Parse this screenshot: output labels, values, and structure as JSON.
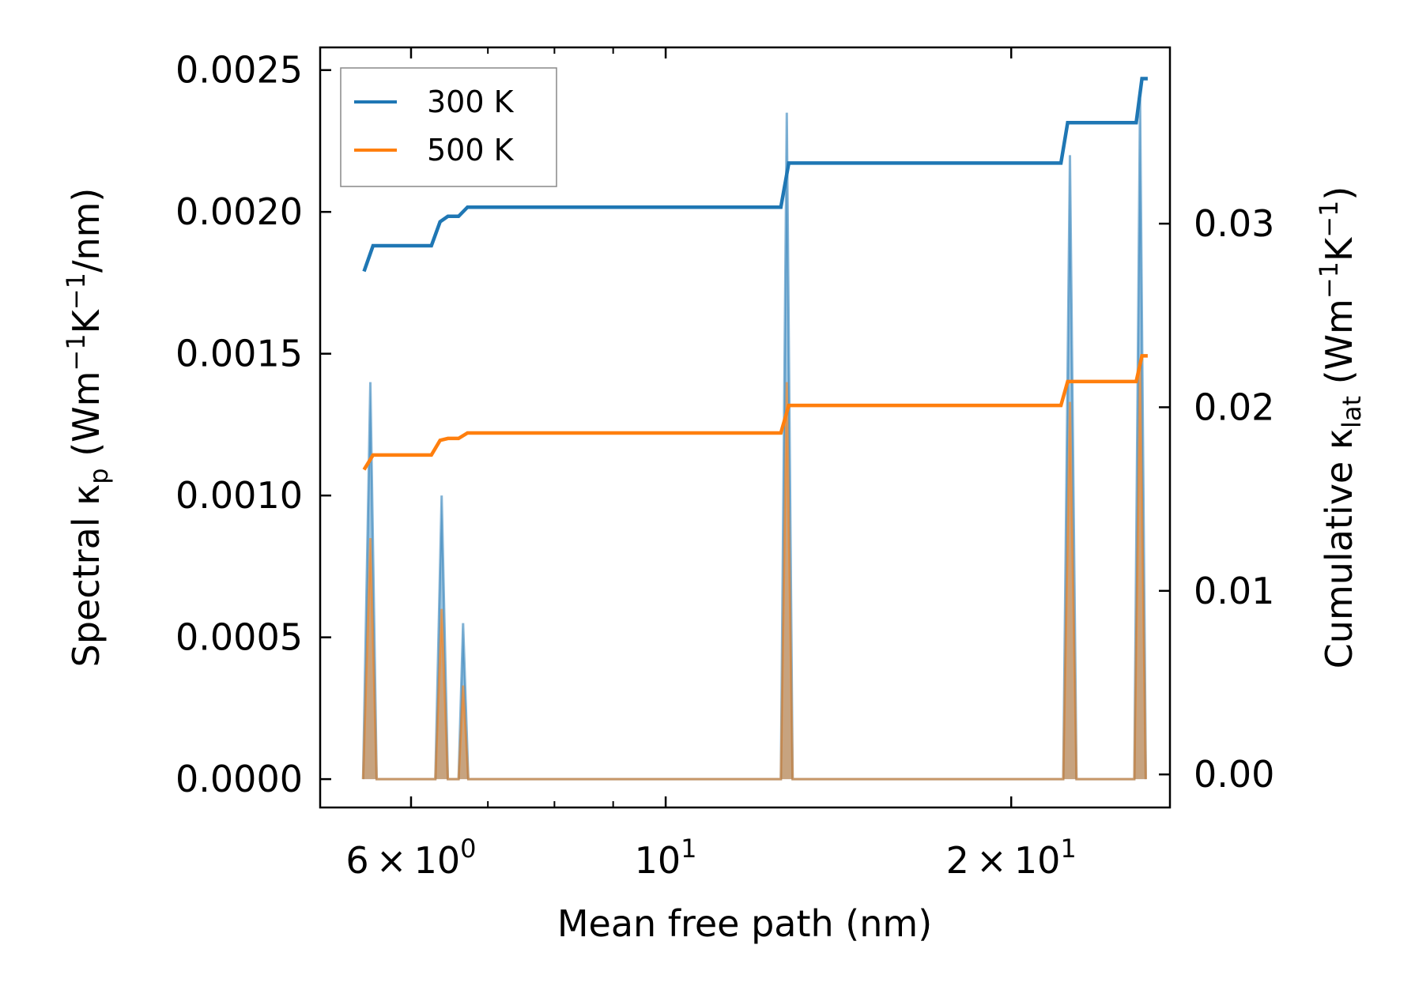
{
  "chart_data": {
    "type": "line",
    "title": "",
    "xlabel": "Mean free path (nm)",
    "ylabel_left": {
      "main": "Spectral κ",
      "sub": "p",
      "unit_prefix": " (Wm",
      "unit_exp1": "−1",
      "unit_mid": "K",
      "unit_exp2": "−1",
      "unit_suffix": "/nm)"
    },
    "ylabel_right": {
      "main": "Cumulative κ",
      "sub": "lat",
      "unit_prefix": " (Wm",
      "unit_exp1": "−1",
      "unit_mid": "K",
      "unit_exp2": "−1",
      "unit_suffix": ")"
    },
    "xscale": "log",
    "xlim": [
      5.0,
      27.5
    ],
    "ylim_left": [
      -0.0001,
      0.00258
    ],
    "ylim_right": [
      -0.0018,
      0.0396
    ],
    "x_ticks": [
      {
        "value": 6,
        "mantissa": "6",
        "times": "×",
        "base": "10",
        "exp": "0"
      },
      {
        "value": 10,
        "mantissa": "",
        "times": "",
        "base": "10",
        "exp": "1"
      },
      {
        "value": 20,
        "mantissa": "2",
        "times": "×",
        "base": "10",
        "exp": "1"
      }
    ],
    "x_minor_ticks": [
      7,
      8,
      9,
      30
    ],
    "y_ticks_left": [
      {
        "value": 0.0,
        "label": "0.0000"
      },
      {
        "value": 0.0005,
        "label": "0.0005"
      },
      {
        "value": 0.001,
        "label": "0.0010"
      },
      {
        "value": 0.0015,
        "label": "0.0015"
      },
      {
        "value": 0.002,
        "label": "0.0020"
      },
      {
        "value": 0.0025,
        "label": "0.0025"
      }
    ],
    "y_ticks_right": [
      {
        "value": 0.0,
        "label": "0.00"
      },
      {
        "value": 0.01,
        "label": "0.01"
      },
      {
        "value": 0.02,
        "label": "0.02"
      },
      {
        "value": 0.03,
        "label": "0.03"
      }
    ],
    "legend": {
      "position": "top-left",
      "entries": [
        {
          "label": "300 K",
          "color": "#1f77b4"
        },
        {
          "label": "500 K",
          "color": "#ff7f0e"
        }
      ]
    },
    "series": [
      {
        "name": "300 K",
        "color": "#1f77b4",
        "spectral": [
          {
            "x": 5.45,
            "y": 0.0
          },
          {
            "x": 5.53,
            "y": 0.0014
          },
          {
            "x": 5.6,
            "y": 0.0
          },
          {
            "x": 6.3,
            "y": 0.0
          },
          {
            "x": 6.38,
            "y": 0.001
          },
          {
            "x": 6.46,
            "y": 0.0
          },
          {
            "x": 6.6,
            "y": 0.0
          },
          {
            "x": 6.66,
            "y": 0.00055
          },
          {
            "x": 6.73,
            "y": 0.0
          },
          {
            "x": 12.6,
            "y": 0.0
          },
          {
            "x": 12.75,
            "y": 0.00235
          },
          {
            "x": 12.9,
            "y": 0.0
          },
          {
            "x": 22.2,
            "y": 0.0
          },
          {
            "x": 22.5,
            "y": 0.0022
          },
          {
            "x": 22.8,
            "y": 0.0
          },
          {
            "x": 25.6,
            "y": 0.0
          },
          {
            "x": 25.9,
            "y": 0.0024
          },
          {
            "x": 26.2,
            "y": 0.0
          }
        ],
        "cumulative": [
          {
            "x": 5.46,
            "y": 0.0274
          },
          {
            "x": 5.56,
            "y": 0.0288
          },
          {
            "x": 6.25,
            "y": 0.0288
          },
          {
            "x": 6.36,
            "y": 0.0301
          },
          {
            "x": 6.46,
            "y": 0.0304
          },
          {
            "x": 6.6,
            "y": 0.0304
          },
          {
            "x": 6.72,
            "y": 0.0309
          },
          {
            "x": 12.6,
            "y": 0.0309
          },
          {
            "x": 12.8,
            "y": 0.0333
          },
          {
            "x": 22.1,
            "y": 0.0333
          },
          {
            "x": 22.4,
            "y": 0.0355
          },
          {
            "x": 25.7,
            "y": 0.0355
          },
          {
            "x": 26.0,
            "y": 0.0379
          },
          {
            "x": 26.3,
            "y": 0.0379
          }
        ]
      },
      {
        "name": "500 K",
        "color": "#ff7f0e",
        "spectral": [
          {
            "x": 5.45,
            "y": 0.0
          },
          {
            "x": 5.53,
            "y": 0.00085
          },
          {
            "x": 5.6,
            "y": 0.0
          },
          {
            "x": 6.3,
            "y": 0.0
          },
          {
            "x": 6.38,
            "y": 0.0006
          },
          {
            "x": 6.46,
            "y": 0.0
          },
          {
            "x": 6.6,
            "y": 0.0
          },
          {
            "x": 6.66,
            "y": 0.00033
          },
          {
            "x": 6.73,
            "y": 0.0
          },
          {
            "x": 12.6,
            "y": 0.0
          },
          {
            "x": 12.75,
            "y": 0.0014
          },
          {
            "x": 12.9,
            "y": 0.0
          },
          {
            "x": 22.2,
            "y": 0.0
          },
          {
            "x": 22.5,
            "y": 0.00133
          },
          {
            "x": 22.8,
            "y": 0.0
          },
          {
            "x": 25.6,
            "y": 0.0
          },
          {
            "x": 25.9,
            "y": 0.00145
          },
          {
            "x": 26.2,
            "y": 0.0
          }
        ],
        "cumulative": [
          {
            "x": 5.46,
            "y": 0.0166
          },
          {
            "x": 5.56,
            "y": 0.0174
          },
          {
            "x": 6.25,
            "y": 0.0174
          },
          {
            "x": 6.36,
            "y": 0.0182
          },
          {
            "x": 6.46,
            "y": 0.0183
          },
          {
            "x": 6.6,
            "y": 0.0183
          },
          {
            "x": 6.72,
            "y": 0.0186
          },
          {
            "x": 12.6,
            "y": 0.0186
          },
          {
            "x": 12.8,
            "y": 0.0201
          },
          {
            "x": 22.1,
            "y": 0.0201
          },
          {
            "x": 22.4,
            "y": 0.0214
          },
          {
            "x": 25.7,
            "y": 0.0214
          },
          {
            "x": 26.0,
            "y": 0.0228
          },
          {
            "x": 26.3,
            "y": 0.0228
          }
        ]
      }
    ]
  }
}
